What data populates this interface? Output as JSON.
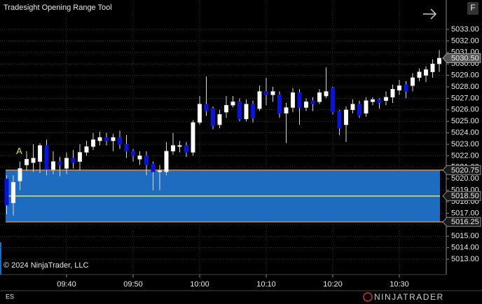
{
  "chart_data": {
    "type": "candlestick",
    "title": "Tradesight Opening Range Tool",
    "copyright": "© 2024 NinjaTrader, LLC",
    "instrument": "ES",
    "brand": "NINJATRADER",
    "marker": "A",
    "button": "F",
    "categories": [
      null,
      null,
      null,
      null,
      null,
      null,
      null,
      null,
      null,
      "09:40",
      null,
      null,
      null,
      null,
      null,
      null,
      null,
      null,
      null,
      "09:50",
      null,
      null,
      null,
      null,
      null,
      null,
      null,
      null,
      null,
      "10:00",
      null,
      null,
      null,
      null,
      null,
      null,
      null,
      null,
      null,
      "10:10",
      null,
      null,
      null,
      null,
      null,
      null,
      null,
      null,
      null,
      "10:20",
      null,
      null,
      null,
      null,
      null,
      null,
      null,
      null,
      null,
      "10:30",
      null,
      null,
      null,
      null,
      null,
      null
    ],
    "open": [
      5020.0,
      5017.9,
      5019.8,
      5021.2,
      5021.4,
      5021.5,
      5022.9,
      5020.8,
      5021.5,
      5020.9,
      5021.8,
      5021.5,
      5022.3,
      5022.8,
      5023.3,
      5023.6,
      5023.3,
      5023.6,
      5023.0,
      5022.4,
      5021.7,
      5022.0,
      5021.3,
      5020.6,
      5020.6,
      5022.4,
      5022.8,
      5022.9,
      5022.3,
      5024.9,
      5026.5,
      5026.1,
      5024.7,
      5025.8,
      5026.4,
      5026.7,
      5025.2,
      5026.5,
      5026.1,
      5027.6,
      5027.3,
      5027.3,
      5025.7,
      5026.2,
      5027.5,
      5026.2,
      5026.8,
      5026.7,
      5027.2,
      5027.9,
      5025.9,
      5024.7,
      5026.0,
      5026.5,
      5025.7,
      5026.7,
      5026.9,
      5026.8,
      5027.1,
      5027.7,
      5028.2,
      5028.1,
      5028.8,
      5029.0,
      5029.3,
      5030.0
    ],
    "high": [
      5020.3,
      5020.3,
      5021.5,
      5022.4,
      5023.0,
      5023.1,
      5023.4,
      5022.4,
      5021.9,
      5022.3,
      5022.5,
      5023.0,
      5023.3,
      5024.0,
      5024.1,
      5024.0,
      5023.9,
      5024.2,
      5023.8,
      5022.6,
      5022.4,
      5022.4,
      5021.5,
      5021.2,
      5023.2,
      5024.0,
      5023.3,
      5023.2,
      5025.1,
      5027.2,
      5028.9,
      5026.3,
      5026.0,
      5027.2,
      5027.2,
      5027.0,
      5026.9,
      5026.8,
      5028.1,
      5028.8,
      5028.0,
      5027.6,
      5026.6,
      5027.9,
      5027.8,
      5027.0,
      5027.1,
      5027.8,
      5029.7,
      5028.0,
      5026.0,
      5026.3,
      5026.9,
      5026.8,
      5027.1,
      5027.1,
      5027.0,
      5027.6,
      5028.2,
      5028.6,
      5028.5,
      5029.2,
      5029.6,
      5029.8,
      5030.4,
      5031.2
    ],
    "low": [
      5016.9,
      5016.8,
      5019.0,
      5020.7,
      5020.6,
      5020.5,
      5020.3,
      5020.4,
      5020.2,
      5020.4,
      5020.9,
      5020.7,
      5022.0,
      5022.5,
      5022.9,
      5022.9,
      5022.4,
      5022.6,
      5021.8,
      5021.5,
      5021.2,
      5020.3,
      5019.0,
      5019.0,
      5020.3,
      5022.1,
      5022.3,
      5021.9,
      5022.0,
      5024.7,
      5025.5,
      5024.3,
      5024.4,
      5025.3,
      5026.2,
      5025.0,
      5025.0,
      5024.9,
      5025.9,
      5026.4,
      5026.7,
      5025.3,
      5023.1,
      5025.8,
      5024.7,
      5025.9,
      5025.9,
      5026.5,
      5027.0,
      5025.6,
      5023.8,
      5023.2,
      5025.7,
      5025.3,
      5025.4,
      5026.4,
      5026.1,
      5026.4,
      5026.6,
      5027.3,
      5027.0,
      5027.6,
      5028.5,
      5028.4,
      5028.8,
      5029.3
    ],
    "close": [
      5017.7,
      5019.7,
      5020.9,
      5021.7,
      5021.8,
      5022.9,
      5020.8,
      5021.5,
      5021.2,
      5021.8,
      5021.4,
      5022.3,
      5022.8,
      5023.4,
      5023.6,
      5023.3,
      5023.6,
      5023.0,
      5022.4,
      5022.0,
      5022.0,
      5021.2,
      5020.6,
      5020.7,
      5022.4,
      5022.9,
      5022.9,
      5022.3,
      5024.9,
      5026.5,
      5025.9,
      5024.6,
      5025.6,
      5026.4,
      5026.7,
      5025.2,
      5026.5,
      5025.3,
      5027.6,
      5027.3,
      5027.6,
      5025.7,
      5026.2,
      5027.5,
      5026.2,
      5026.7,
      5026.5,
      5027.5,
      5027.6,
      5025.8,
      5024.4,
      5026.0,
      5026.5,
      5025.5,
      5026.8,
      5026.9,
      5026.6,
      5027.1,
      5027.8,
      5028.1,
      5027.6,
      5028.8,
      5029.3,
      5029.5,
      5030.0,
      5030.5
    ],
    "up_color": "#ffffff",
    "down_color": "#0a14d8",
    "ylim": [
      5011.66,
      5035.56
    ],
    "yticks": [
      {
        "value": 5013,
        "label": "5013.00"
      },
      {
        "value": 5014,
        "label": "5014.00"
      },
      {
        "value": 5015,
        "label": "5015.00"
      },
      {
        "value": 5016,
        "label": "5016.00"
      },
      {
        "value": 5017,
        "label": "5017.00"
      },
      {
        "value": 5018,
        "label": "5018.00"
      },
      {
        "value": 5019,
        "label": "5019.00"
      },
      {
        "value": 5020,
        "label": "5020.00"
      },
      {
        "value": 5021,
        "label": "5021.00"
      },
      {
        "value": 5022,
        "label": "5022.00"
      },
      {
        "value": 5023,
        "label": "5023.00"
      },
      {
        "value": 5024,
        "label": "5024.00"
      },
      {
        "value": 5025,
        "label": "5025.00"
      },
      {
        "value": 5026,
        "label": "5026.00"
      },
      {
        "value": 5027,
        "label": "5027.00"
      },
      {
        "value": 5028,
        "label": "5028.00"
      },
      {
        "value": 5029,
        "label": "5029.00"
      },
      {
        "value": 5030,
        "label": "5030.00"
      },
      {
        "value": 5031,
        "label": "5031.00"
      },
      {
        "value": 5032,
        "label": "5032.00"
      },
      {
        "value": 5033,
        "label": "5033.00"
      }
    ],
    "grid": true,
    "range_high": {
      "value": 5020.75,
      "label": "5020.75"
    },
    "range_mid": {
      "value": 5018.5,
      "label": "5018.50"
    },
    "range_low": {
      "value": 5016.25,
      "label": "5016.25"
    },
    "last_price": {
      "value": 5030.5,
      "label": "5030.50"
    },
    "range_color": "#1e6cc0",
    "range_edge_color": "#d88a48",
    "mid_color": "#f0e63a"
  }
}
